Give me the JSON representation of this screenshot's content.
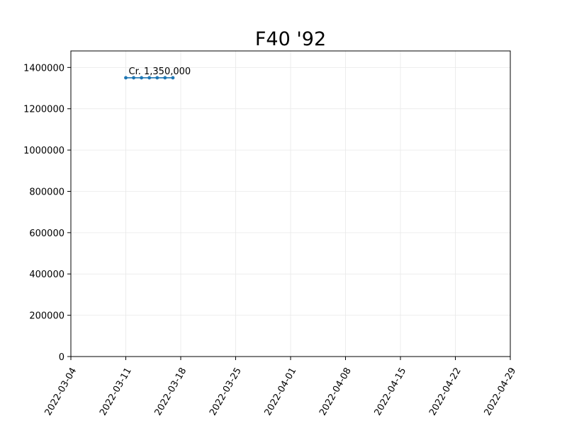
{
  "chart_data": {
    "type": "line",
    "title": "F40 '92",
    "xlabel": "",
    "ylabel": "",
    "x_axis_type": "date",
    "xlim": [
      "2022-03-04",
      "2022-04-29"
    ],
    "ylim": [
      0,
      1480000
    ],
    "x_ticks": [
      "2022-03-04",
      "2022-03-11",
      "2022-03-18",
      "2022-03-25",
      "2022-04-01",
      "2022-04-08",
      "2022-04-15",
      "2022-04-22",
      "2022-04-29"
    ],
    "y_ticks": [
      0,
      200000,
      400000,
      600000,
      800000,
      1000000,
      1200000,
      1400000
    ],
    "y_tick_labels": [
      "0",
      "200000",
      "400000",
      "600000",
      "800000",
      "1000000",
      "1200000",
      "1400000"
    ],
    "grid": true,
    "series": [
      {
        "color": "#1f77b4",
        "marker": "dot",
        "points": [
          {
            "x": "2022-03-11",
            "y": 1350000
          },
          {
            "x": "2022-03-12",
            "y": 1350000
          },
          {
            "x": "2022-03-13",
            "y": 1350000
          },
          {
            "x": "2022-03-14",
            "y": 1350000
          },
          {
            "x": "2022-03-15",
            "y": 1350000
          },
          {
            "x": "2022-03-16",
            "y": 1350000
          },
          {
            "x": "2022-03-17",
            "y": 1350000
          }
        ]
      }
    ],
    "annotations": [
      {
        "text": "Cr. 1,350,000",
        "x": "2022-03-11",
        "y": 1350000
      }
    ]
  }
}
